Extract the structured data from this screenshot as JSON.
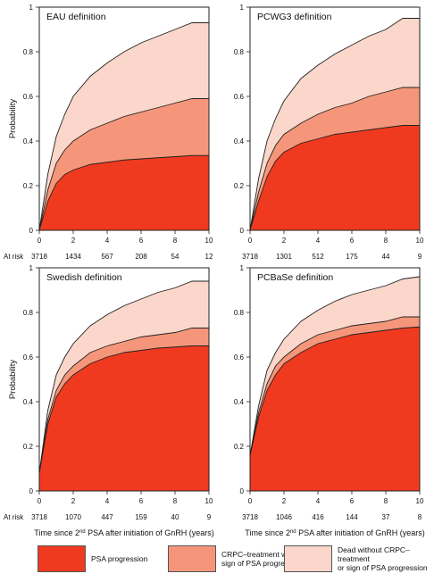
{
  "colors": {
    "pfs": "#f03a1f",
    "crpc": "#f5967a",
    "dead": "#fad7ca",
    "frame": "#222222"
  },
  "xlabel_parts": {
    "pre": "Time since 2",
    "sup": "nd",
    "post": " PSA after initiation of GnRH (years)"
  },
  "legend": [
    {
      "label": "PSA progression",
      "color_key": "pfs"
    },
    {
      "label": "CRPC–treatment without\nsign of PSA progression",
      "color_key": "crpc"
    },
    {
      "label": "Dead without CRPC–treatment\nor sign of PSA progression",
      "color_key": "dead"
    }
  ],
  "chart_data": [
    {
      "type": "area",
      "title": "EAU definition",
      "ylabel": "Probability",
      "xlim": [
        0,
        10
      ],
      "ylim": [
        0,
        1
      ],
      "xticks": [
        0,
        2,
        4,
        6,
        8,
        10
      ],
      "yticks": [
        0,
        0.2,
        0.4,
        0.6,
        0.8,
        1
      ],
      "at_risk_label": "At risk",
      "at_risk": [
        3718,
        1434,
        567,
        208,
        54,
        12
      ],
      "x": [
        0,
        0.5,
        1,
        1.5,
        2,
        3,
        4,
        5,
        6,
        7,
        8,
        9,
        10
      ],
      "series": [
        {
          "name": "PSA progression",
          "values": [
            0,
            0.13,
            0.21,
            0.25,
            0.27,
            0.295,
            0.305,
            0.315,
            0.32,
            0.325,
            0.33,
            0.335,
            0.335
          ]
        },
        {
          "name": "CRPC–treatment without sign of PSA progression",
          "values": [
            0,
            0.18,
            0.3,
            0.36,
            0.4,
            0.45,
            0.48,
            0.51,
            0.53,
            0.55,
            0.57,
            0.59,
            0.59
          ]
        },
        {
          "name": "Dead without CRPC–treatment or sign of PSA progression",
          "values": [
            0,
            0.25,
            0.42,
            0.52,
            0.6,
            0.69,
            0.75,
            0.8,
            0.84,
            0.87,
            0.9,
            0.93,
            0.93
          ]
        }
      ]
    },
    {
      "type": "area",
      "title": "PCWG3 definition",
      "ylabel": "",
      "xlim": [
        0,
        10
      ],
      "ylim": [
        0,
        1
      ],
      "xticks": [
        0,
        2,
        4,
        6,
        8,
        10
      ],
      "yticks": [
        0,
        0.2,
        0.4,
        0.6,
        0.8,
        1
      ],
      "at_risk_label": "",
      "at_risk": [
        3718,
        1301,
        512,
        175,
        44,
        9
      ],
      "x": [
        0,
        0.5,
        1,
        1.5,
        2,
        3,
        4,
        5,
        6,
        7,
        8,
        9,
        10
      ],
      "series": [
        {
          "name": "PSA progression",
          "values": [
            0,
            0.13,
            0.24,
            0.31,
            0.35,
            0.39,
            0.41,
            0.43,
            0.44,
            0.45,
            0.46,
            0.47,
            0.47
          ]
        },
        {
          "name": "CRPC–treatment without sign of PSA progression",
          "values": [
            0,
            0.17,
            0.3,
            0.38,
            0.43,
            0.48,
            0.52,
            0.55,
            0.57,
            0.6,
            0.62,
            0.64,
            0.64
          ]
        },
        {
          "name": "Dead without CRPC–treatment or sign of PSA progression",
          "values": [
            0,
            0.23,
            0.4,
            0.5,
            0.58,
            0.68,
            0.74,
            0.79,
            0.83,
            0.87,
            0.9,
            0.95,
            0.95
          ]
        }
      ]
    },
    {
      "type": "area",
      "title": "Swedish definition",
      "ylabel": "Probability",
      "xlim": [
        0,
        10
      ],
      "ylim": [
        0,
        1
      ],
      "xticks": [
        0,
        2,
        4,
        6,
        8,
        10
      ],
      "yticks": [
        0,
        0.2,
        0.4,
        0.6,
        0.8,
        1
      ],
      "at_risk_label": "At risk",
      "at_risk": [
        3718,
        1070,
        447,
        159,
        40,
        9
      ],
      "x": [
        0,
        0.5,
        1,
        1.5,
        2,
        3,
        4,
        5,
        6,
        7,
        8,
        9,
        10
      ],
      "series": [
        {
          "name": "PSA progression",
          "values": [
            0.08,
            0.3,
            0.42,
            0.48,
            0.52,
            0.57,
            0.6,
            0.62,
            0.63,
            0.64,
            0.645,
            0.65,
            0.65
          ]
        },
        {
          "name": "CRPC–treatment without sign of PSA progression",
          "values": [
            0.08,
            0.32,
            0.45,
            0.52,
            0.56,
            0.62,
            0.65,
            0.67,
            0.69,
            0.7,
            0.71,
            0.73,
            0.73
          ]
        },
        {
          "name": "Dead without CRPC–treatment or sign of PSA progression",
          "values": [
            0.08,
            0.36,
            0.52,
            0.6,
            0.66,
            0.74,
            0.79,
            0.83,
            0.86,
            0.89,
            0.91,
            0.94,
            0.94
          ]
        }
      ]
    },
    {
      "type": "area",
      "title": "PCBaSe definition",
      "ylabel": "",
      "xlim": [
        0,
        10
      ],
      "ylim": [
        0,
        1
      ],
      "xticks": [
        0,
        2,
        4,
        6,
        8,
        10
      ],
      "yticks": [
        0,
        0.2,
        0.4,
        0.6,
        0.8,
        1
      ],
      "at_risk_label": "",
      "at_risk": [
        3718,
        1046,
        416,
        144,
        37,
        8
      ],
      "x": [
        0,
        0.5,
        1,
        1.5,
        2,
        3,
        4,
        5,
        6,
        7,
        8,
        9,
        10
      ],
      "series": [
        {
          "name": "PSA progression",
          "values": [
            0.16,
            0.33,
            0.45,
            0.52,
            0.57,
            0.62,
            0.66,
            0.68,
            0.7,
            0.71,
            0.72,
            0.73,
            0.735
          ]
        },
        {
          "name": "CRPC–treatment without sign of PSA progression",
          "values": [
            0.16,
            0.35,
            0.48,
            0.56,
            0.6,
            0.66,
            0.7,
            0.72,
            0.74,
            0.75,
            0.76,
            0.78,
            0.78
          ]
        },
        {
          "name": "Dead without CRPC–treatment or sign of PSA progression",
          "values": [
            0.16,
            0.38,
            0.54,
            0.62,
            0.68,
            0.76,
            0.81,
            0.85,
            0.88,
            0.9,
            0.92,
            0.95,
            0.96
          ]
        }
      ]
    }
  ]
}
